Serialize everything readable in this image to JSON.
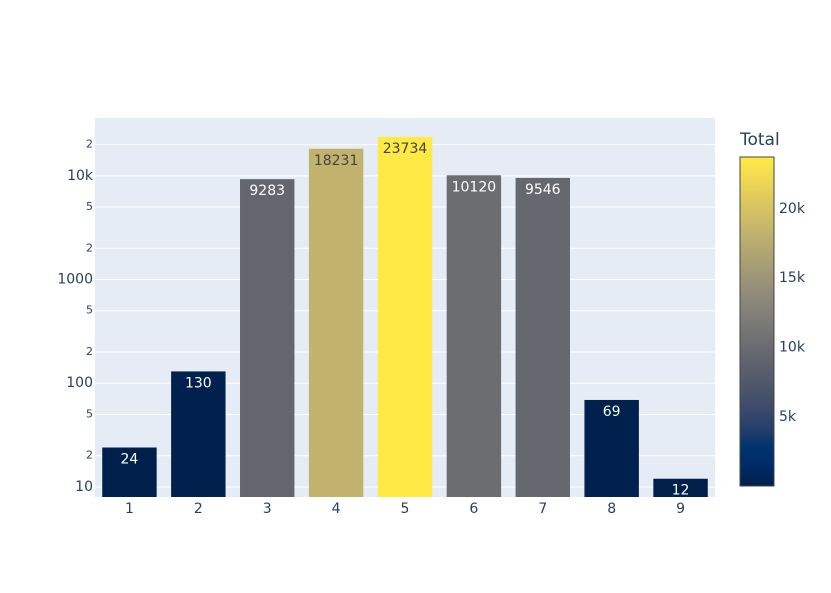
{
  "chart_data": {
    "type": "bar",
    "categories": [
      "1",
      "2",
      "3",
      "4",
      "5",
      "6",
      "7",
      "8",
      "9"
    ],
    "values": [
      24,
      130,
      9283,
      18231,
      23734,
      10120,
      9546,
      69,
      12
    ],
    "log_y": true,
    "ylim": [
      8,
      36100
    ],
    "yticks": [
      10,
      {
        "value": 20,
        "label": "2"
      },
      {
        "value": 50,
        "label": "5"
      },
      100,
      {
        "value": 200,
        "label": "2"
      },
      {
        "value": 500,
        "label": "5"
      },
      1000,
      {
        "value": 2000,
        "label": "2"
      },
      {
        "value": 5000,
        "label": "5"
      },
      {
        "value": 10000,
        "label": "10k"
      },
      {
        "value": 20000,
        "label": "2"
      }
    ],
    "grid": true,
    "colorbar": {
      "title": "Total",
      "lim": [
        12,
        23734
      ],
      "ticks": [
        {
          "value": 5000,
          "label": "5k"
        },
        {
          "value": 10000,
          "label": "10k"
        },
        {
          "value": 15000,
          "label": "15k"
        },
        {
          "value": 20000,
          "label": "20k"
        }
      ],
      "colorscale": [
        [
          0,
          "rgb(0,32,76)"
        ],
        [
          0.058824,
          "rgb(0,42,102)"
        ],
        [
          0.117647,
          "rgb(0,52,110)"
        ],
        [
          0.176471,
          "rgb(39,63,108)"
        ],
        [
          0.235294,
          "rgb(60,74,107)"
        ],
        [
          0.294118,
          "rgb(76,85,107)"
        ],
        [
          0.352941,
          "rgb(91,95,109)"
        ],
        [
          0.411765,
          "rgb(104,106,112)"
        ],
        [
          0.470588,
          "rgb(117,117,117)"
        ],
        [
          0.529412,
          "rgb(131,129,120)"
        ],
        [
          0.588235,
          "rgb(146,140,120)"
        ],
        [
          0.647059,
          "rgb(161,152,118)"
        ],
        [
          0.705882,
          "rgb(176,165,114)"
        ],
        [
          0.764706,
          "rgb(192,177,109)"
        ],
        [
          0.823529,
          "rgb(209,191,102)"
        ],
        [
          0.882353,
          "rgb(225,204,92)"
        ],
        [
          0.941176,
          "rgb(243,219,79)"
        ],
        [
          1,
          "rgb(255,233,69)"
        ]
      ]
    }
  }
}
